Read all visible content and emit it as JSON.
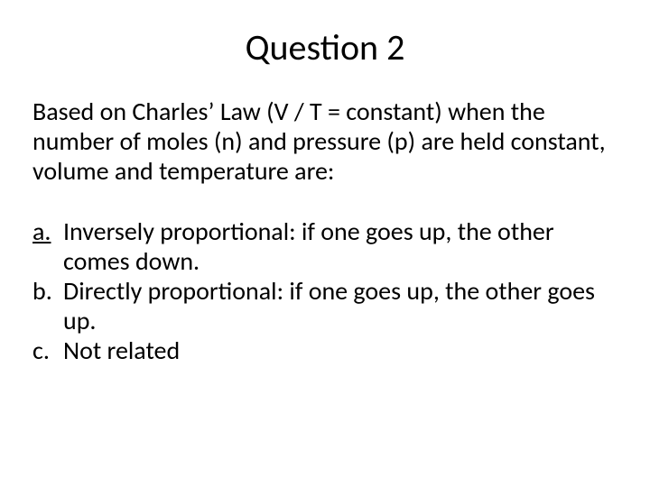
{
  "background_color": "#ffffff",
  "text_color": "#000000",
  "title": {
    "text": "Question 2",
    "fontsize": 40,
    "align": "center"
  },
  "prompt": {
    "text": "Based on Charles’ Law (V / T = constant) when the number of moles (n) and pressure (p) are held constant, volume and temperature are:",
    "fontsize": 28
  },
  "options": {
    "fontsize": 28,
    "items": [
      {
        "letter": "a.",
        "letter_underlined": true,
        "text": "Inversely proportional:  if one goes up, the other comes down."
      },
      {
        "letter": "b.",
        "letter_underlined": false,
        "text": "Directly proportional:  if one goes up, the other goes up."
      },
      {
        "letter": "c.",
        "letter_underlined": false,
        "text": "Not related"
      }
    ]
  }
}
